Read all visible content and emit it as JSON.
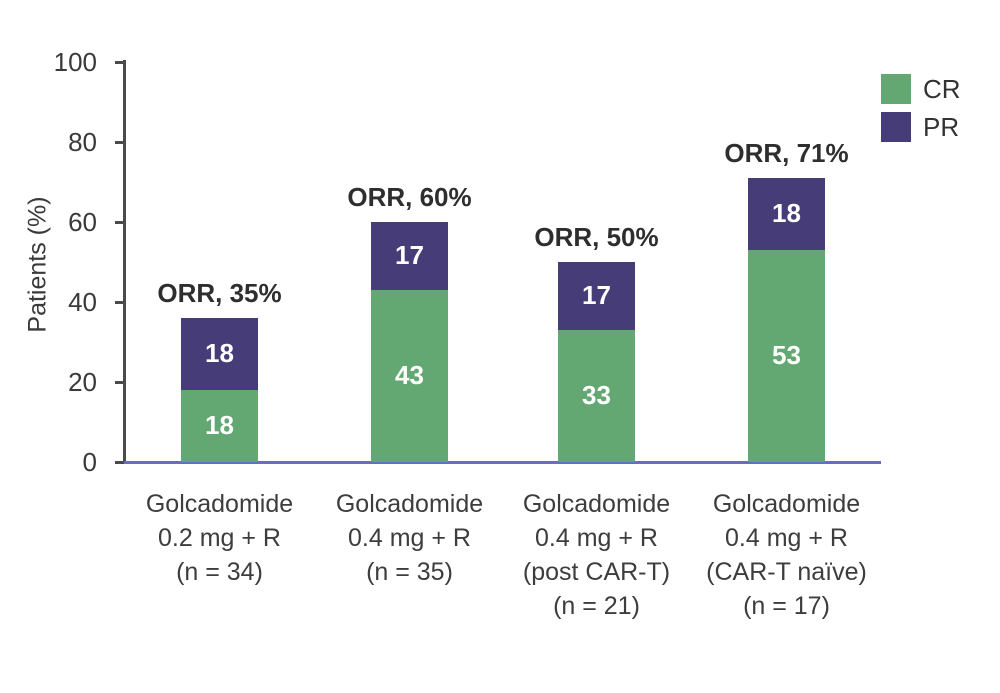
{
  "chart_data": {
    "type": "bar",
    "stacked": true,
    "title": "",
    "ylabel": "Patients (%)",
    "xlabel": "",
    "ylim": [
      0,
      100
    ],
    "yticks": [
      0,
      20,
      40,
      60,
      80,
      100
    ],
    "grid": false,
    "legend_position": "top-right",
    "legend": [
      {
        "label": "CR",
        "color": "#63a873"
      },
      {
        "label": "PR",
        "color": "#463d78"
      }
    ],
    "categories": [
      {
        "lines": [
          "Golcadomide",
          "0.2 mg + R",
          "(n = 34)"
        ]
      },
      {
        "lines": [
          "Golcadomide",
          "0.4 mg + R",
          "(n = 35)"
        ]
      },
      {
        "lines": [
          "Golcadomide",
          "0.4 mg + R",
          "(post CAR-T)",
          "(n = 21)"
        ]
      },
      {
        "lines": [
          "Golcadomide",
          "0.4 mg + R",
          "(CAR-T naïve)",
          "(n = 17)"
        ]
      }
    ],
    "series": [
      {
        "name": "CR",
        "color": "#63a873",
        "values": [
          18,
          43,
          33,
          53
        ]
      },
      {
        "name": "PR",
        "color": "#463d78",
        "values": [
          18,
          17,
          17,
          18
        ]
      }
    ],
    "annotations": [
      "ORR, 35%",
      "ORR, 60%",
      "ORR, 50%",
      "ORR, 71%"
    ],
    "colors": {
      "cr": "#63a873",
      "pr": "#463d78",
      "axis": "#4a4a4a",
      "baseline": "#6a6dbf",
      "tick_text": "#3a3a3a",
      "category_text": "#3d3d3d",
      "annotation_text": "#2e2e2e",
      "value_text": "#ffffff",
      "background": "#ffffff"
    }
  }
}
